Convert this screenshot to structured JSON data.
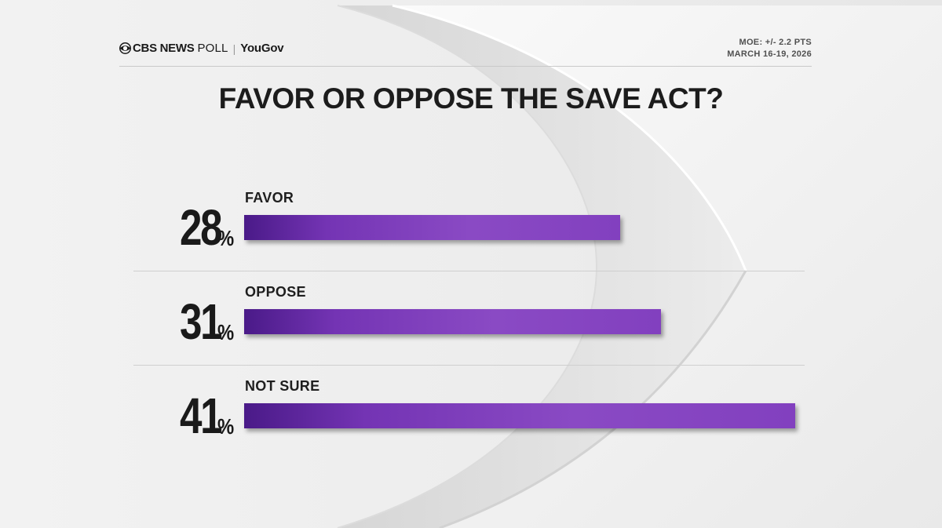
{
  "header": {
    "brand_cbs": "CBS NEWS",
    "brand_poll": "POLL",
    "brand_sep": "|",
    "brand_yougov": "YouGov",
    "moe": "MOE: +/- 2.2 PTS",
    "dates": "MARCH 16-19, 2026"
  },
  "chart_data": {
    "type": "bar",
    "title": "FAVOR OR OPPOSE THE SAVE ACT?",
    "categories": [
      "FAVOR",
      "OPPOSE",
      "NOT SURE"
    ],
    "values": [
      28,
      31,
      41
    ],
    "value_labels": [
      "28",
      "31",
      "41"
    ],
    "unit": "%",
    "orientation": "horizontal",
    "xlim": [
      0,
      41
    ],
    "bar_color": "#8240bf",
    "grid": false,
    "legend": "none"
  },
  "colors": {
    "bar_dark": "#4a1a88",
    "bar_light": "#8a4ac4",
    "text": "#1a1a1a",
    "background": "#f4f4f4"
  }
}
